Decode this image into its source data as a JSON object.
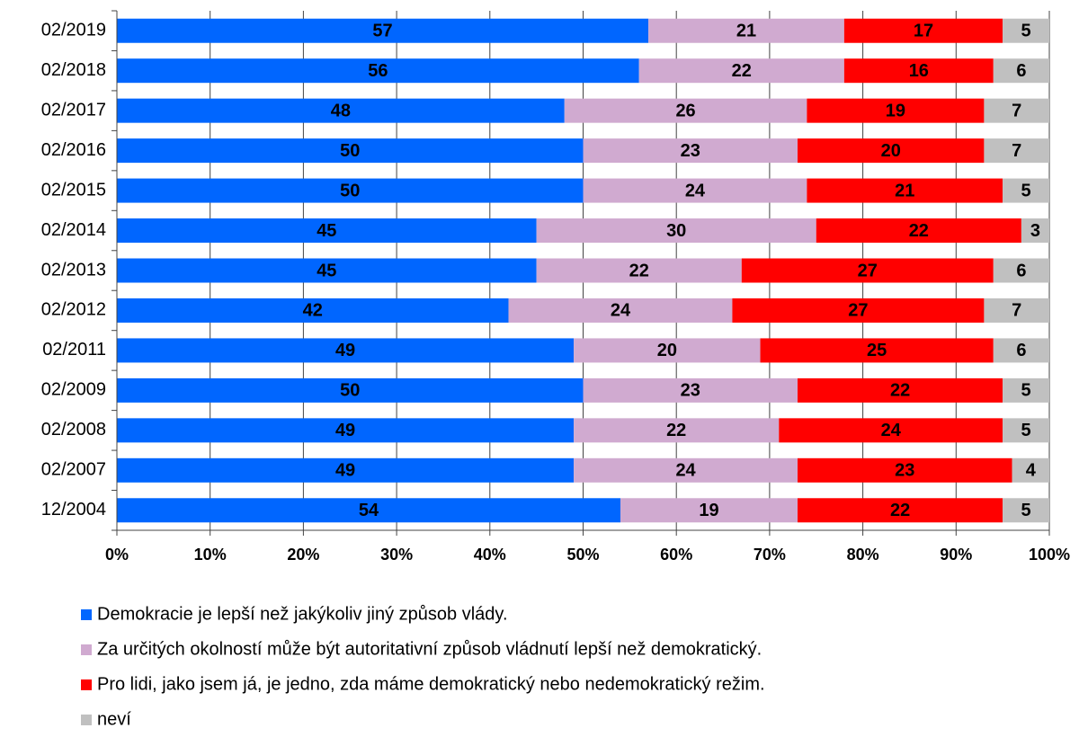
{
  "chart_data": {
    "type": "bar",
    "orientation": "horizontal",
    "stacked": true,
    "categories": [
      "02/2019",
      "02/2018",
      "02/2017",
      "02/2016",
      "02/2015",
      "02/2014",
      "02/2013",
      "02/2012",
      "02/2011",
      "02/2009",
      "02/2008",
      "02/2007",
      "12/2004"
    ],
    "series": [
      {
        "name": "Demokracie je lepší než jakýkoliv jiný způsob vlády.",
        "color": "#0066ff",
        "values": [
          57,
          56,
          48,
          50,
          50,
          45,
          45,
          42,
          49,
          50,
          49,
          49,
          54
        ]
      },
      {
        "name": "Za určitých okolností může být autoritativní způsob vládnutí lepší než demokratický.",
        "color": "#d0aad0",
        "values": [
          21,
          22,
          26,
          23,
          24,
          30,
          22,
          24,
          20,
          23,
          22,
          24,
          19
        ]
      },
      {
        "name": "Pro lidi, jako jsem já, je jedno, zda máme demokratický nebo nedemokratický režim.",
        "color": "#ff0000",
        "values": [
          17,
          16,
          19,
          20,
          21,
          22,
          27,
          27,
          25,
          22,
          24,
          23,
          22
        ]
      },
      {
        "name": "neví",
        "color": "#c0c0c0",
        "values": [
          5,
          6,
          7,
          7,
          5,
          3,
          6,
          7,
          6,
          5,
          5,
          4,
          5
        ]
      }
    ],
    "xlim": [
      0,
      100
    ],
    "xticks": [
      {
        "value": 0,
        "label": "0%"
      },
      {
        "value": 10,
        "label": "10%"
      },
      {
        "value": 20,
        "label": "20%"
      },
      {
        "value": 30,
        "label": "30%"
      },
      {
        "value": 40,
        "label": "40%"
      },
      {
        "value": 50,
        "label": "50%"
      },
      {
        "value": 60,
        "label": "60%"
      },
      {
        "value": 70,
        "label": "70%"
      },
      {
        "value": 80,
        "label": "80%"
      },
      {
        "value": 90,
        "label": "90%"
      },
      {
        "value": 100,
        "label": "100%"
      }
    ],
    "grid": true,
    "legend": "bottom"
  }
}
